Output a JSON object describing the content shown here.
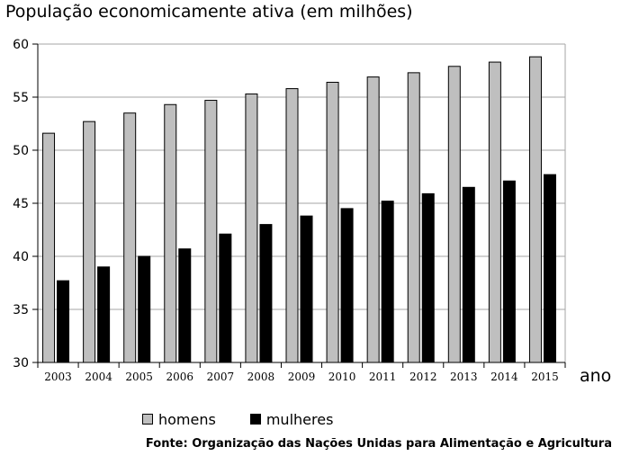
{
  "chart_data": {
    "type": "bar",
    "title": "População economicamente ativa (em milhões)",
    "xlabel": "ano",
    "ylabel": "",
    "ylim": [
      30,
      60
    ],
    "yticks": [
      30,
      35,
      40,
      45,
      50,
      55,
      60
    ],
    "grid": "horizontal",
    "legend_position": "bottom",
    "categories": [
      "2003",
      "2004",
      "2005",
      "2006",
      "2007",
      "2008",
      "2009",
      "2010",
      "2011",
      "2012",
      "2013",
      "2014",
      "2015"
    ],
    "series": [
      {
        "name": "homens",
        "color": "#bfbfbf",
        "values": [
          51.6,
          52.7,
          53.5,
          54.3,
          54.7,
          55.3,
          55.8,
          56.4,
          56.9,
          57.3,
          57.9,
          58.3,
          58.8
        ]
      },
      {
        "name": "mulheres",
        "color": "#000000",
        "values": [
          37.7,
          39.0,
          40.0,
          40.7,
          42.1,
          43.0,
          43.8,
          44.5,
          45.2,
          45.9,
          46.5,
          47.1,
          47.7
        ]
      }
    ],
    "source": "Fonte: Organização das Nações Unidas para Alimentação e Agricultura"
  }
}
